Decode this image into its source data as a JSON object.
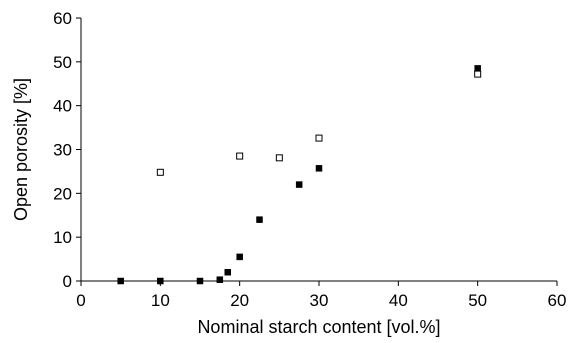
{
  "chart_data": {
    "type": "scatter",
    "title": "",
    "xlabel": "Nominal starch content [vol.%]",
    "ylabel": "Open porosity [%]",
    "xlim": [
      0,
      60
    ],
    "ylim": [
      0,
      60
    ],
    "xticks": [
      0,
      10,
      20,
      30,
      40,
      50,
      60
    ],
    "yticks": [
      0,
      10,
      20,
      30,
      40,
      50,
      60
    ],
    "grid": false,
    "legend": "none",
    "series": [
      {
        "marker": "filled-square",
        "color": "#000000",
        "x": [
          5,
          10,
          15,
          17.5,
          18.5,
          20,
          22.5,
          27.5,
          30,
          50
        ],
        "y": [
          0,
          0,
          0,
          0.3,
          2,
          5.5,
          14,
          22,
          25.7,
          48.5
        ]
      },
      {
        "marker": "open-square",
        "color": "#000000",
        "x": [
          10,
          20,
          25,
          30,
          50
        ],
        "y": [
          24.8,
          28.5,
          28.1,
          32.6,
          47.2
        ]
      }
    ]
  }
}
